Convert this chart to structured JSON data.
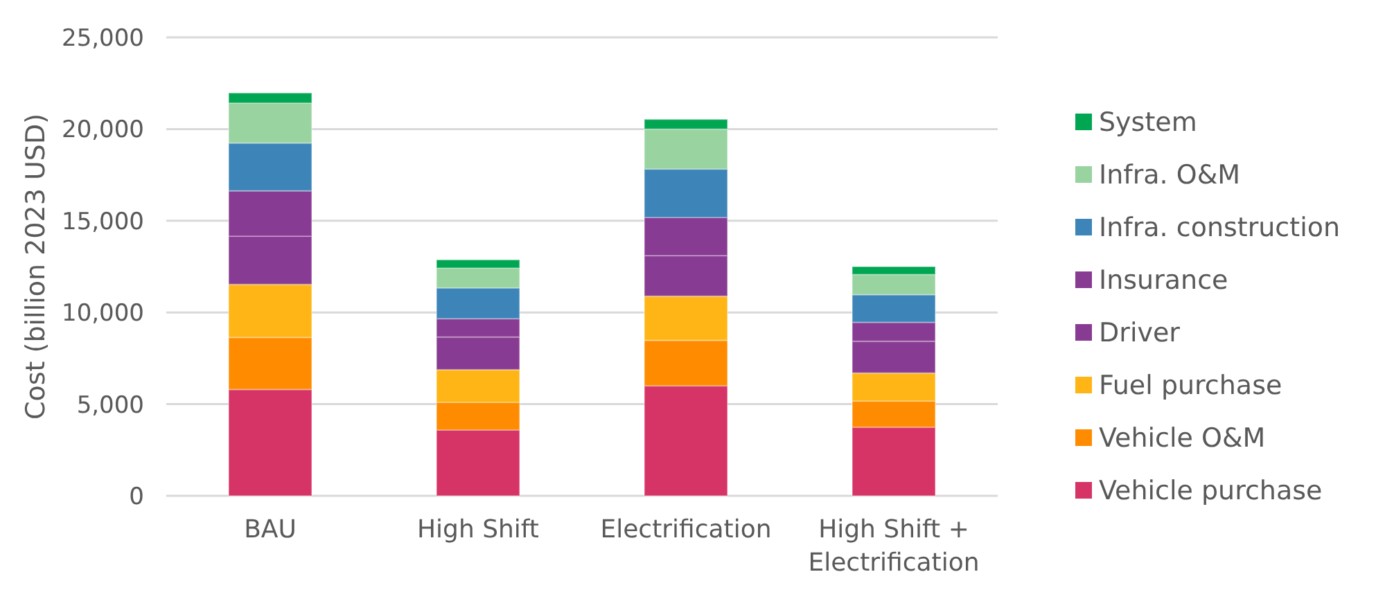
{
  "chart_data": {
    "type": "bar",
    "stacked": true,
    "ylabel": "Cost (billion 2023 USD)",
    "categories": [
      "BAU",
      "High Shift",
      "Electrification",
      "High Shift + Electrification"
    ],
    "ylim": [
      0,
      25000
    ],
    "yticks": [
      {
        "value": 0,
        "label": "0"
      },
      {
        "value": 5000,
        "label": "5,000"
      },
      {
        "value": 10000,
        "label": "10,000"
      },
      {
        "value": 15000,
        "label": "15,000"
      },
      {
        "value": 20000,
        "label": "20,000"
      },
      {
        "value": 25000,
        "label": "25,000"
      }
    ],
    "grid": "y",
    "legend": "right",
    "series": [
      {
        "name": "Vehicle purchase",
        "color": "#d63366",
        "values": [
          5800,
          3590,
          6000,
          3740
        ]
      },
      {
        "name": "Vehicle O&M",
        "color": "#ff8c00",
        "values": [
          2840,
          1510,
          2480,
          1430
        ]
      },
      {
        "name": "Fuel purchase",
        "color": "#ffb515",
        "values": [
          2890,
          1780,
          2410,
          1530
        ]
      },
      {
        "name": "Driver",
        "color": "#883b92",
        "values": [
          2630,
          1780,
          2210,
          1730
        ]
      },
      {
        "name": "Insurance",
        "color": "#883b92",
        "values": [
          2470,
          1000,
          2080,
          1030
        ]
      },
      {
        "name": "Infra. construction",
        "color": "#3d85b8",
        "values": [
          2610,
          1680,
          2640,
          1510
        ]
      },
      {
        "name": "Infra. O&M",
        "color": "#99d3a0",
        "values": [
          2180,
          1080,
          2180,
          1100
        ]
      },
      {
        "name": "System",
        "color": "#00a651",
        "values": [
          550,
          450,
          530,
          430
        ]
      }
    ]
  }
}
